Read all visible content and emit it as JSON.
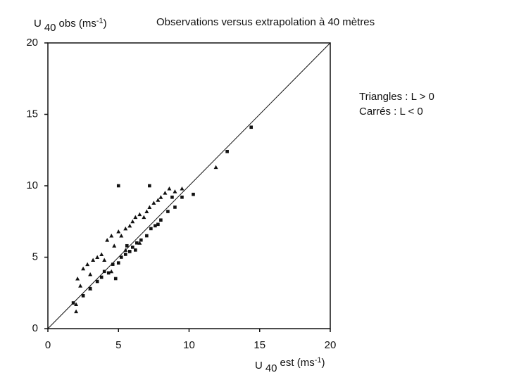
{
  "chart_data": {
    "type": "scatter",
    "title": "Observations versus extrapolation à 40 mètres",
    "x_label": [
      "U",
      "40",
      "est (ms",
      "-1",
      ")"
    ],
    "y_label": [
      "U",
      "40",
      "obs (ms",
      "-1",
      ")"
    ],
    "xlim": [
      0,
      20
    ],
    "ylim": [
      0,
      20
    ],
    "xticks": [
      0,
      5,
      10,
      15,
      20
    ],
    "yticks": [
      0,
      5,
      10,
      15,
      20
    ],
    "identity_line": true,
    "series": [
      {
        "name": "Triangles : L > 0",
        "marker": "triangle",
        "color": "#111111",
        "x": [
          2,
          2.1,
          2.3,
          2.5,
          2.8,
          3,
          3.2,
          3.5,
          3.8,
          4,
          4.2,
          4.5,
          4.7,
          5,
          5.2,
          5.5,
          5.8,
          6,
          6.2,
          6.5,
          6.8,
          7,
          7.2,
          7.5,
          7.8,
          8,
          8.3,
          8.6,
          9,
          9.5,
          3,
          4.5,
          5.5,
          6.5,
          2,
          11.9
        ],
        "values": [
          1.2,
          3.5,
          3,
          4.2,
          4.5,
          3.8,
          4.8,
          5,
          5.2,
          4.8,
          6.2,
          6.5,
          5.8,
          6.8,
          6.5,
          7,
          7.2,
          7.5,
          7.8,
          8,
          7.8,
          8.2,
          8.5,
          8.8,
          9,
          9.2,
          9.5,
          9.8,
          9.6,
          9.8,
          2.8,
          4,
          5.5,
          6,
          1.7,
          11.3
        ]
      },
      {
        "name": "Carrés : L < 0",
        "marker": "square",
        "color": "#111111",
        "x": [
          1.8,
          2.5,
          3,
          3.5,
          3.8,
          4,
          4.3,
          4.6,
          5,
          5.2,
          5.5,
          5.8,
          6,
          6.3,
          6.6,
          7,
          7.3,
          7.6,
          8,
          8.5,
          9,
          9.5,
          10.3,
          4.8,
          5.6,
          6.2,
          7.8,
          8.8,
          12.7,
          14.4,
          5,
          7.2
        ],
        "values": [
          1.8,
          2.3,
          2.8,
          3.3,
          3.6,
          4,
          3.9,
          4.5,
          4.6,
          5,
          5.2,
          5.4,
          5.7,
          6,
          6.2,
          6.5,
          7,
          7.2,
          7.6,
          8.2,
          8.5,
          9.2,
          9.4,
          3.5,
          5.8,
          5.5,
          7.3,
          9.2,
          12.4,
          14.1,
          10,
          10
        ]
      }
    ]
  }
}
